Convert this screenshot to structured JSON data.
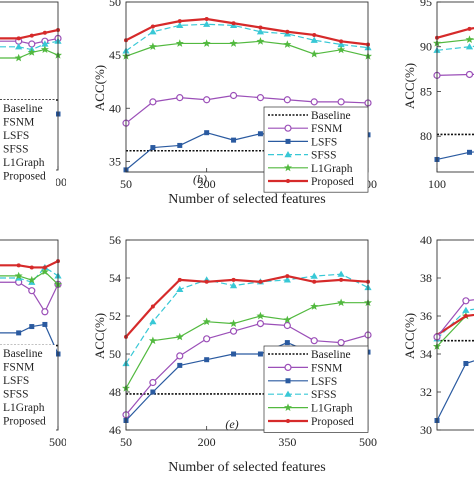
{
  "figure": {
    "xlabel": "Number of selected features",
    "ylabel": "ACC(%)"
  },
  "chart_data": [
    {
      "type": "line",
      "panel": "top-left (partial)",
      "x": [
        50,
        100,
        150,
        200,
        250,
        300,
        350,
        400,
        450,
        500
      ],
      "xlim": [
        50,
        500
      ],
      "xticks": [
        500
      ],
      "yticks": [],
      "legend": {
        "placement": "left",
        "entries": [
          "Baseline",
          "FSNM",
          "LSFS",
          "SFSS",
          "L1Graph",
          "Proposed"
        ]
      },
      "series": [
        {
          "name": "Baseline",
          "values": [
            null,
            null,
            null,
            null,
            null,
            null,
            null,
            null,
            null,
            42.5
          ]
        },
        {
          "name": "FSNM",
          "values": [
            null,
            null,
            null,
            null,
            null,
            null,
            44.6,
            44.5,
            44.6,
            44.7
          ]
        },
        {
          "name": "LSFS",
          "values": [
            null,
            null,
            null,
            null,
            null,
            null,
            42.2,
            42.0,
            41.9,
            42.0
          ]
        },
        {
          "name": "SFSS",
          "values": [
            null,
            null,
            null,
            null,
            null,
            null,
            44.4,
            44.3,
            44.5,
            44.6
          ]
        },
        {
          "name": "L1Graph",
          "values": [
            null,
            null,
            null,
            null,
            null,
            null,
            44.0,
            44.2,
            44.3,
            44.1
          ]
        },
        {
          "name": "Proposed",
          "values": [
            null,
            null,
            null,
            null,
            null,
            null,
            44.7,
            44.8,
            44.9,
            45.0
          ]
        }
      ]
    },
    {
      "type": "line",
      "panel": "(b)",
      "x": [
        50,
        100,
        150,
        200,
        250,
        300,
        350,
        400,
        450,
        500
      ],
      "xlim": [
        50,
        500
      ],
      "xticks": [
        50,
        200,
        350,
        500
      ],
      "ylim": [
        34,
        50
      ],
      "yticks": [
        35,
        40,
        45,
        50
      ],
      "legend": {
        "placement": "bottom-right",
        "entries": [
          "Baseline",
          "FSNM",
          "LSFS",
          "SFSS",
          "L1Graph",
          "Proposed"
        ]
      },
      "series": [
        {
          "name": "Baseline",
          "values": [
            36.0,
            36.0,
            36.0,
            36.0,
            36.0,
            36.0,
            36.0,
            36.0,
            36.0,
            36.0
          ]
        },
        {
          "name": "FSNM",
          "values": [
            38.6,
            40.6,
            41.0,
            40.8,
            41.2,
            41.0,
            40.8,
            40.6,
            40.6,
            40.5
          ]
        },
        {
          "name": "LSFS",
          "values": [
            34.2,
            36.3,
            36.5,
            37.7,
            37.0,
            37.6,
            37.5,
            37.4,
            37.6,
            37.5
          ]
        },
        {
          "name": "SFSS",
          "values": [
            45.4,
            47.2,
            47.8,
            47.9,
            47.8,
            47.2,
            47.0,
            46.4,
            46.0,
            45.7
          ]
        },
        {
          "name": "L1Graph",
          "values": [
            44.9,
            45.8,
            46.1,
            46.1,
            46.1,
            46.3,
            46.0,
            45.1,
            45.5,
            44.9
          ]
        },
        {
          "name": "Proposed",
          "values": [
            46.4,
            47.7,
            48.2,
            48.4,
            48.0,
            47.6,
            47.2,
            46.9,
            46.3,
            46.0
          ]
        }
      ]
    },
    {
      "type": "line",
      "panel": "top-right (partial)",
      "x": [
        100,
        150,
        200
      ],
      "xlim": [
        100,
        500
      ],
      "xticks": [
        100
      ],
      "yticks": [
        80,
        85,
        90,
        95
      ],
      "series": [
        {
          "name": "Baseline",
          "values": [
            80.2,
            80.2,
            80.2
          ]
        },
        {
          "name": "LSFS",
          "values": [
            77.4,
            78.2,
            78.5
          ]
        },
        {
          "name": "FSNM",
          "values": [
            86.8,
            86.9,
            87.0
          ]
        },
        {
          "name": "SFSS",
          "values": [
            89.6,
            90.0,
            90.3
          ]
        },
        {
          "name": "L1Graph",
          "values": [
            90.4,
            90.8,
            91.2
          ]
        },
        {
          "name": "Proposed",
          "values": [
            91.0,
            92.0,
            92.6
          ]
        }
      ]
    },
    {
      "type": "line",
      "panel": "bottom-left (partial)",
      "x": [
        50,
        100,
        150,
        200,
        250,
        300,
        350,
        400,
        450,
        500
      ],
      "xlim": [
        50,
        500
      ],
      "xticks": [
        500
      ],
      "yticks": [],
      "legend": {
        "placement": "left",
        "entries": [
          "Baseline",
          "FSNM",
          "LSFS",
          "SFSS",
          "L1Graph",
          "Proposed"
        ]
      },
      "series": [
        {
          "name": "Baseline",
          "values": [
            null,
            null,
            null,
            null,
            null,
            null,
            null,
            null,
            null,
            35.0
          ]
        },
        {
          "name": "FSNM",
          "values": [
            null,
            null,
            null,
            null,
            null,
            null,
            38.0,
            37.6,
            36.6,
            37.9
          ]
        },
        {
          "name": "LSFS",
          "values": [
            null,
            null,
            null,
            null,
            null,
            null,
            35.6,
            35.9,
            36.0,
            34.6
          ]
        },
        {
          "name": "SFSS",
          "values": [
            null,
            null,
            null,
            null,
            null,
            null,
            38.2,
            38.0,
            38.7,
            38.3
          ]
        },
        {
          "name": "L1Graph",
          "values": [
            null,
            null,
            null,
            null,
            null,
            null,
            38.3,
            38.1,
            38.5,
            37.9
          ]
        },
        {
          "name": "Proposed",
          "values": [
            null,
            null,
            null,
            null,
            null,
            null,
            38.8,
            38.7,
            38.7,
            39.0
          ]
        }
      ]
    },
    {
      "type": "line",
      "panel": "(e)",
      "x": [
        50,
        100,
        150,
        200,
        250,
        300,
        350,
        400,
        450,
        500
      ],
      "xlim": [
        50,
        500
      ],
      "xticks": [
        50,
        200,
        350,
        500
      ],
      "ylim": [
        46,
        56
      ],
      "yticks": [
        46,
        48,
        50,
        52,
        54,
        56
      ],
      "legend": {
        "placement": "bottom-right",
        "entries": [
          "Baseline",
          "FSNM",
          "LSFS",
          "SFSS",
          "L1Graph",
          "Proposed"
        ]
      },
      "series": [
        {
          "name": "Baseline",
          "values": [
            47.9,
            47.9,
            47.9,
            47.9,
            47.9,
            47.9,
            47.9,
            47.9,
            47.9,
            47.9
          ]
        },
        {
          "name": "FSNM",
          "values": [
            46.8,
            48.5,
            49.9,
            50.8,
            51.2,
            51.6,
            51.5,
            50.7,
            50.6,
            51.0
          ]
        },
        {
          "name": "LSFS",
          "values": [
            46.5,
            48.0,
            49.4,
            49.7,
            50.0,
            50.0,
            50.6,
            50.0,
            49.9,
            50.1
          ]
        },
        {
          "name": "SFSS",
          "values": [
            49.5,
            51.7,
            53.4,
            53.9,
            53.6,
            53.8,
            53.9,
            54.1,
            54.2,
            53.5
          ]
        },
        {
          "name": "L1Graph",
          "values": [
            48.2,
            50.7,
            50.9,
            51.7,
            51.6,
            52.0,
            51.8,
            52.5,
            52.7,
            52.7
          ]
        },
        {
          "name": "Proposed",
          "values": [
            50.9,
            52.5,
            53.9,
            53.8,
            53.9,
            53.8,
            54.1,
            53.8,
            53.9,
            53.8
          ]
        }
      ]
    },
    {
      "type": "line",
      "panel": "bottom-right (partial)",
      "x": [
        50,
        100,
        150
      ],
      "xlim": [
        50,
        500
      ],
      "xticks": [],
      "yticks": [
        30,
        32,
        34,
        36,
        38,
        40
      ],
      "series": [
        {
          "name": "LSFS",
          "values": [
            30.5,
            33.5,
            34.0
          ]
        },
        {
          "name": "Baseline",
          "values": [
            34.7,
            34.7,
            34.7
          ]
        },
        {
          "name": "L1Graph",
          "values": [
            34.4,
            36.0,
            36.2
          ]
        },
        {
          "name": "SFSS",
          "values": [
            34.8,
            36.3,
            36.5
          ]
        },
        {
          "name": "Proposed",
          "values": [
            35.0,
            36.0,
            36.2
          ]
        },
        {
          "name": "FSNM",
          "values": [
            34.9,
            36.8,
            37.0
          ]
        }
      ]
    }
  ],
  "colors": {
    "Baseline": "#111111",
    "FSNM": "#9b4fb8",
    "LSFS": "#2a5aa0",
    "SFSS": "#38c8d6",
    "L1Graph": "#52b93f",
    "Proposed": "#d62a2a"
  },
  "panel_labels": {
    "b": "(b)",
    "e": "(e)"
  }
}
